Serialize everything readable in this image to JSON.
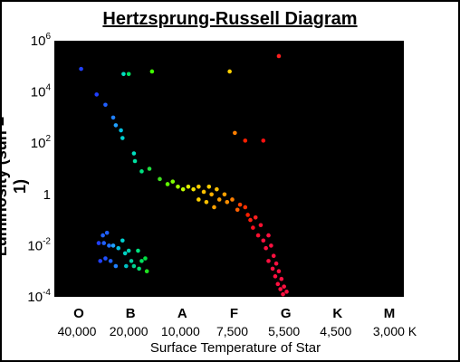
{
  "chart_data": {
    "type": "scatter",
    "title": "Hertzsprung-Russell Diagram",
    "xlabel": "Surface Temperature of Star",
    "ylabel": "Luminosity (sun = 1)",
    "y_scale": "log",
    "ylim_log10": [
      -4,
      6
    ],
    "y_ticks": [
      {
        "label": "10",
        "exp": "6",
        "log10": 6
      },
      {
        "label": "10",
        "exp": "4",
        "log10": 4
      },
      {
        "label": "10",
        "exp": "2",
        "log10": 2
      },
      {
        "label": "1",
        "exp": "",
        "log10": 0
      },
      {
        "label": "10",
        "exp": "-2",
        "log10": -2
      },
      {
        "label": "10",
        "exp": "-4",
        "log10": -4
      }
    ],
    "spectral_classes": [
      "O",
      "B",
      "A",
      "F",
      "G",
      "K",
      "M"
    ],
    "temperature_ticks": [
      "40,000",
      "20,000",
      "10,000",
      "7,500",
      "5,500",
      "4,500",
      "3,000 K"
    ],
    "background": "#000000",
    "stars": [
      {
        "t": 0.08,
        "logL": 4.9,
        "color": "#2040ff"
      },
      {
        "t": 0.9,
        "logL": 4.7,
        "color": "#00e0c0"
      },
      {
        "t": 1.0,
        "logL": 4.7,
        "color": "#00e060"
      },
      {
        "t": 2.95,
        "logL": 4.8,
        "color": "#ffd000"
      },
      {
        "t": 1.45,
        "logL": 4.8,
        "color": "#40ff00"
      },
      {
        "t": 3.9,
        "logL": 5.4,
        "color": "#ff2020"
      },
      {
        "t": 3.05,
        "logL": 2.4,
        "color": "#ff8000"
      },
      {
        "t": 3.25,
        "logL": 2.1,
        "color": "#ff2000"
      },
      {
        "t": 3.6,
        "logL": 2.1,
        "color": "#ff1010"
      },
      {
        "t": 0.38,
        "logL": 3.9,
        "color": "#2040ff"
      },
      {
        "t": 0.55,
        "logL": 3.5,
        "color": "#2060ff"
      },
      {
        "t": 0.7,
        "logL": 3.0,
        "color": "#2080ff"
      },
      {
        "t": 0.75,
        "logL": 2.7,
        "color": "#20a0ff"
      },
      {
        "t": 0.85,
        "logL": 2.5,
        "color": "#00c0e0"
      },
      {
        "t": 0.88,
        "logL": 2.2,
        "color": "#00d0d0"
      },
      {
        "t": 1.1,
        "logL": 1.6,
        "color": "#00e0c0"
      },
      {
        "t": 1.12,
        "logL": 1.3,
        "color": "#00e0a0"
      },
      {
        "t": 1.25,
        "logL": 0.9,
        "color": "#00e080"
      },
      {
        "t": 1.4,
        "logL": 1.0,
        "color": "#20e040"
      },
      {
        "t": 1.6,
        "logL": 0.6,
        "color": "#40e020"
      },
      {
        "t": 1.75,
        "logL": 0.4,
        "color": "#60ff00"
      },
      {
        "t": 1.85,
        "logL": 0.5,
        "color": "#80ff00"
      },
      {
        "t": 1.95,
        "logL": 0.3,
        "color": "#a0ff00"
      },
      {
        "t": 2.05,
        "logL": 0.2,
        "color": "#c0ff00"
      },
      {
        "t": 2.15,
        "logL": 0.3,
        "color": "#e0f000"
      },
      {
        "t": 2.25,
        "logL": 0.2,
        "color": "#f0e000"
      },
      {
        "t": 2.35,
        "logL": 0.3,
        "color": "#ffd000"
      },
      {
        "t": 2.45,
        "logL": 0.1,
        "color": "#ffc000"
      },
      {
        "t": 2.55,
        "logL": 0.3,
        "color": "#ffd000"
      },
      {
        "t": 2.6,
        "logL": 0.0,
        "color": "#ffb000"
      },
      {
        "t": 2.7,
        "logL": 0.2,
        "color": "#ffc000"
      },
      {
        "t": 2.75,
        "logL": -0.2,
        "color": "#ffa000"
      },
      {
        "t": 2.85,
        "logL": 0.0,
        "color": "#ffa000"
      },
      {
        "t": 2.9,
        "logL": -0.3,
        "color": "#ff9000"
      },
      {
        "t": 2.5,
        "logL": -0.3,
        "color": "#ffc000"
      },
      {
        "t": 2.35,
        "logL": -0.2,
        "color": "#ffd000"
      },
      {
        "t": 2.65,
        "logL": -0.5,
        "color": "#ffa000"
      },
      {
        "t": 3.0,
        "logL": -0.2,
        "color": "#ff8000"
      },
      {
        "t": 3.1,
        "logL": -0.6,
        "color": "#ff6000"
      },
      {
        "t": 3.15,
        "logL": -0.4,
        "color": "#ff4000"
      },
      {
        "t": 3.25,
        "logL": -0.5,
        "color": "#ff3000"
      },
      {
        "t": 3.3,
        "logL": -0.8,
        "color": "#ff2000"
      },
      {
        "t": 3.35,
        "logL": -1.0,
        "color": "#ff2010"
      },
      {
        "t": 3.45,
        "logL": -0.9,
        "color": "#ff2020"
      },
      {
        "t": 3.4,
        "logL": -1.3,
        "color": "#ff1020"
      },
      {
        "t": 3.55,
        "logL": -1.2,
        "color": "#ff1030"
      },
      {
        "t": 3.5,
        "logL": -1.6,
        "color": "#ff1030"
      },
      {
        "t": 3.6,
        "logL": -1.8,
        "color": "#ff1040"
      },
      {
        "t": 3.7,
        "logL": -1.6,
        "color": "#ff1040"
      },
      {
        "t": 3.65,
        "logL": -2.1,
        "color": "#ff1040"
      },
      {
        "t": 3.75,
        "logL": -2.0,
        "color": "#ff1040"
      },
      {
        "t": 3.8,
        "logL": -2.4,
        "color": "#ff1040"
      },
      {
        "t": 3.7,
        "logL": -2.6,
        "color": "#ff1040"
      },
      {
        "t": 3.85,
        "logL": -2.7,
        "color": "#ff1040"
      },
      {
        "t": 3.78,
        "logL": -2.9,
        "color": "#ff1040"
      },
      {
        "t": 3.9,
        "logL": -3.0,
        "color": "#ff1040"
      },
      {
        "t": 3.83,
        "logL": -3.2,
        "color": "#ff1040"
      },
      {
        "t": 3.95,
        "logL": -3.3,
        "color": "#ff1040"
      },
      {
        "t": 3.88,
        "logL": -3.5,
        "color": "#ff1040"
      },
      {
        "t": 4.0,
        "logL": -3.6,
        "color": "#ff1040"
      },
      {
        "t": 3.93,
        "logL": -3.7,
        "color": "#ff1040"
      },
      {
        "t": 4.05,
        "logL": -3.8,
        "color": "#ff1040"
      },
      {
        "t": 3.98,
        "logL": -3.9,
        "color": "#ff1040"
      },
      {
        "t": 0.5,
        "logL": -1.6,
        "color": "#2060ff"
      },
      {
        "t": 0.58,
        "logL": -1.5,
        "color": "#2060ff"
      },
      {
        "t": 0.42,
        "logL": -1.9,
        "color": "#2040ff"
      },
      {
        "t": 0.52,
        "logL": -1.9,
        "color": "#2060ff"
      },
      {
        "t": 0.62,
        "logL": -2.0,
        "color": "#2070ff"
      },
      {
        "t": 0.7,
        "logL": -2.0,
        "color": "#20a0ff"
      },
      {
        "t": 0.8,
        "logL": -2.1,
        "color": "#00c0e0"
      },
      {
        "t": 0.45,
        "logL": -2.6,
        "color": "#2040ff"
      },
      {
        "t": 0.55,
        "logL": -2.5,
        "color": "#2050ff"
      },
      {
        "t": 0.65,
        "logL": -2.6,
        "color": "#2060ff"
      },
      {
        "t": 0.75,
        "logL": -2.8,
        "color": "#2080ff"
      },
      {
        "t": 0.88,
        "logL": -1.8,
        "color": "#00d0d0"
      },
      {
        "t": 0.93,
        "logL": -2.3,
        "color": "#00d0c0"
      },
      {
        "t": 1.0,
        "logL": -2.2,
        "color": "#00d0b0"
      },
      {
        "t": 1.05,
        "logL": -2.6,
        "color": "#00d0a0"
      },
      {
        "t": 0.95,
        "logL": -2.8,
        "color": "#00c0c0"
      },
      {
        "t": 1.1,
        "logL": -2.8,
        "color": "#00d090"
      },
      {
        "t": 1.18,
        "logL": -2.2,
        "color": "#00e080"
      },
      {
        "t": 1.25,
        "logL": -2.6,
        "color": "#00e060"
      },
      {
        "t": 1.32,
        "logL": -2.5,
        "color": "#00e040"
      },
      {
        "t": 1.35,
        "logL": -3.0,
        "color": "#20e020"
      },
      {
        "t": 1.2,
        "logL": -2.9,
        "color": "#00e070"
      }
    ]
  }
}
